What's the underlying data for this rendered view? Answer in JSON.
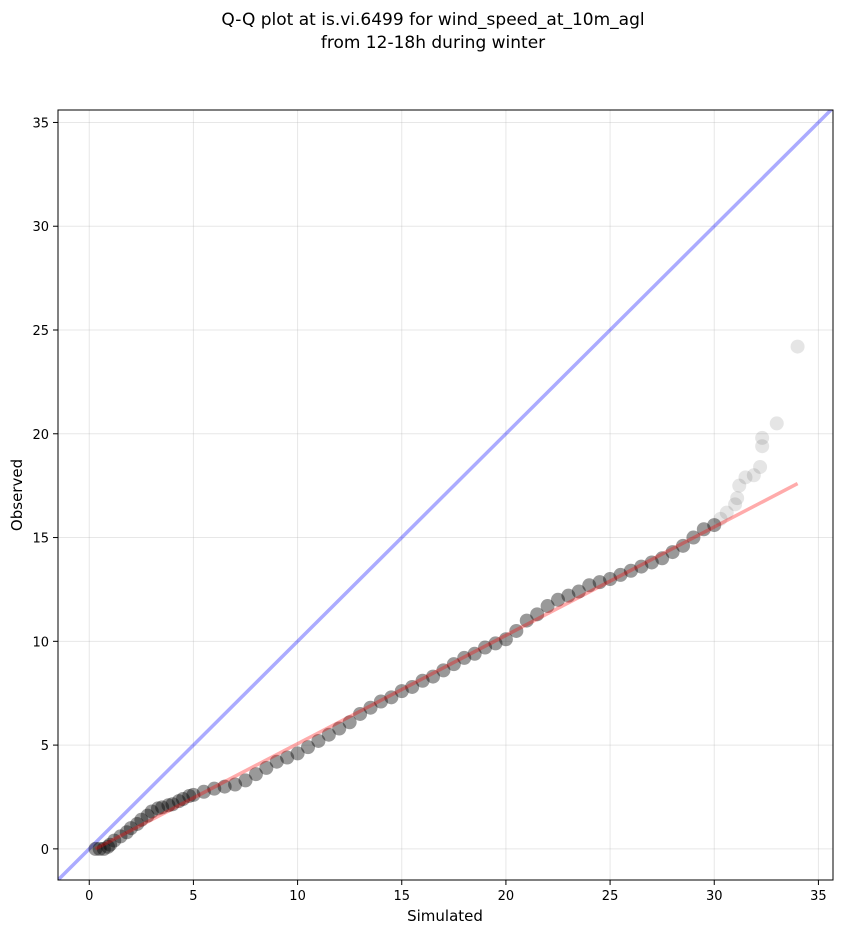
{
  "chart_data": {
    "type": "scatter",
    "title": [
      "Q-Q plot at is.vi.6499 for wind_speed_at_10m_agl",
      "from 12-18h during winter"
    ],
    "xlabel": "Simulated",
    "ylabel": "Observed",
    "x": [
      0.3,
      0.5,
      0.7,
      0.9,
      1.0,
      1.2,
      1.5,
      1.8,
      2.0,
      2.3,
      2.5,
      2.8,
      3.0,
      3.3,
      3.5,
      3.8,
      4.0,
      4.3,
      4.5,
      4.8,
      5.0,
      5.5,
      6.0,
      6.5,
      7.0,
      7.5,
      8.0,
      8.5,
      9.0,
      9.5,
      10.0,
      10.5,
      11.0,
      11.5,
      12.0,
      12.5,
      13.0,
      13.5,
      14.0,
      14.5,
      15.0,
      15.5,
      16.0,
      16.5,
      17.0,
      17.5,
      18.0,
      18.5,
      19.0,
      19.5,
      20.0,
      20.5,
      21.0,
      21.5,
      22.0,
      22.5,
      23.0,
      23.5,
      24.0,
      24.5,
      25.0,
      25.5,
      26.0,
      26.5,
      27.0,
      27.5,
      28.0,
      28.5,
      29.0,
      29.5,
      30.0,
      30.3,
      30.6,
      31.0,
      31.1,
      31.2,
      31.5,
      31.9,
      32.2,
      32.3,
      32.3,
      33.0,
      34.0
    ],
    "values": [
      0.0,
      0.0,
      0.0,
      0.1,
      0.2,
      0.4,
      0.6,
      0.8,
      1.0,
      1.2,
      1.4,
      1.6,
      1.8,
      1.95,
      2.0,
      2.1,
      2.15,
      2.3,
      2.4,
      2.55,
      2.6,
      2.75,
      2.9,
      3.0,
      3.1,
      3.3,
      3.6,
      3.9,
      4.2,
      4.4,
      4.6,
      4.9,
      5.2,
      5.5,
      5.8,
      6.1,
      6.5,
      6.8,
      7.1,
      7.3,
      7.6,
      7.8,
      8.1,
      8.3,
      8.6,
      8.9,
      9.2,
      9.4,
      9.7,
      9.9,
      10.1,
      10.5,
      11.0,
      11.3,
      11.7,
      12.0,
      12.2,
      12.4,
      12.7,
      12.85,
      13.0,
      13.2,
      13.4,
      13.6,
      13.8,
      14.0,
      14.3,
      14.6,
      15.0,
      15.4,
      15.6,
      15.9,
      16.2,
      16.6,
      16.9,
      17.5,
      17.9,
      18.0,
      18.4,
      19.4,
      19.8,
      20.5,
      24.2
    ],
    "color": "#000000",
    "reference_line": {
      "x": [
        -1.5,
        35.7
      ],
      "y": [
        -1.5,
        35.7
      ],
      "color": "#0000ff"
    },
    "fit_line": {
      "x": [
        0.3,
        34.0
      ],
      "y": [
        0.0,
        17.6
      ],
      "color": "#ff0000"
    },
    "xlim": [
      -1.5,
      35.7
    ],
    "ylim": [
      -1.5,
      35.6
    ],
    "xticks": [
      0,
      5,
      10,
      15,
      20,
      25,
      30,
      35
    ],
    "yticks": [
      0,
      5,
      10,
      15,
      20,
      25,
      30,
      35
    ],
    "grid": true
  }
}
